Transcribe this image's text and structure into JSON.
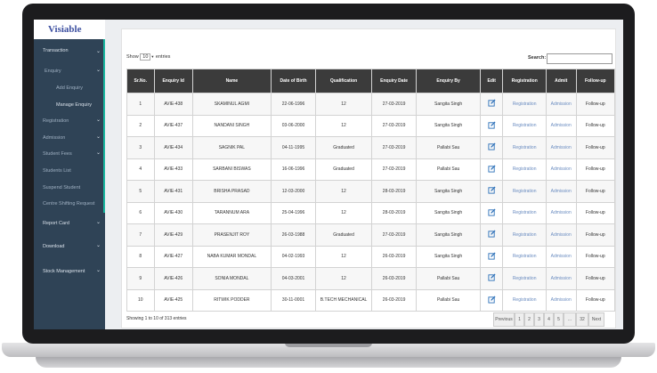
{
  "brand": "Visiable",
  "sidebar": {
    "transaction": "Transaction",
    "enquiry": "Enquiry",
    "add_enquiry": "Add Enquiry",
    "manage_enquiry": "Manage Enquiry",
    "registration": "Registration",
    "admission": "Admission",
    "student_fees": "Student Fees",
    "students_list": "Students List",
    "suspend_student": "Suspend Student",
    "centre_shifting": "Centre Shifting Request",
    "report_card": "Report Card",
    "download": "Download",
    "stock_management": "Stock Management"
  },
  "controls": {
    "show": "Show",
    "page_size": "10",
    "entries": "entries",
    "search": "Search:"
  },
  "table": {
    "headers": [
      "Sr.No.",
      "Enquiry Id",
      "Name",
      "Date of Birth",
      "Qualification",
      "Enquiry Date",
      "Enquiry By",
      "Edit",
      "Registration",
      "Admit",
      "Follow-up"
    ],
    "rows": [
      [
        "1",
        "AVIE-438",
        "SKAMINUL AGMI",
        "22-06-1996",
        "12",
        "27-03-2019",
        "Sangita Singh",
        "Registration",
        "Admission",
        "Follow-up"
      ],
      [
        "2",
        "AVIE-437",
        "NANDANI SINGH",
        "03-06-2000",
        "12",
        "27-03-2019",
        "Sangita Singh",
        "Registration",
        "Admission",
        "Follow-up"
      ],
      [
        "3",
        "AVIE-434",
        "SAGNIK PAL",
        "04-11-1995",
        "Graduated",
        "27-03-2019",
        "Pallabi Sau",
        "Registration",
        "Admission",
        "Follow-up"
      ],
      [
        "4",
        "AVIE-433",
        "SARBANI BISWAS",
        "16-06-1996",
        "Graduated",
        "27-03-2019",
        "Pallabi Sau",
        "Registration",
        "Admission",
        "Follow-up"
      ],
      [
        "5",
        "AVIE-431",
        "BRISHA PRASAD",
        "12-03-2000",
        "12",
        "28-03-2019",
        "Sangita Singh",
        "Registration",
        "Admission",
        "Follow-up"
      ],
      [
        "6",
        "AVIE-430",
        "TARANNUM ARA",
        "25-04-1996",
        "12",
        "28-03-2019",
        "Sangita Singh",
        "Registration",
        "Admission",
        "Follow-up"
      ],
      [
        "7",
        "AVIE-429",
        "PRASENJIT ROY",
        "26-03-1988",
        "Graduated",
        "27-03-2019",
        "Sangita Singh",
        "Registration",
        "Admission",
        "Follow-up"
      ],
      [
        "8",
        "AVIE-427",
        "NABA KUMAR MONDAL",
        "04-02-1993",
        "12",
        "26-03-2019",
        "Sangita Singh",
        "Registration",
        "Admission",
        "Follow-up"
      ],
      [
        "9",
        "AVIE-426",
        "SONIA MONDAL",
        "04-03-2001",
        "12",
        "26-03-2019",
        "Pallabi Sau",
        "Registration",
        "Admission",
        "Follow-up"
      ],
      [
        "10",
        "AVIE-425",
        "RITWIK PODDER",
        "30-11-0001",
        "B.TECH MECHANICAL",
        "26-03-2019",
        "Pallabi Sau",
        "Registration",
        "Admission",
        "Follow-up"
      ]
    ]
  },
  "footer": {
    "info": "Showing 1 to 10 of 313 entries",
    "pagination": [
      "Previous",
      "1",
      "2",
      "3",
      "4",
      "5",
      "...",
      "32",
      "Next"
    ]
  }
}
